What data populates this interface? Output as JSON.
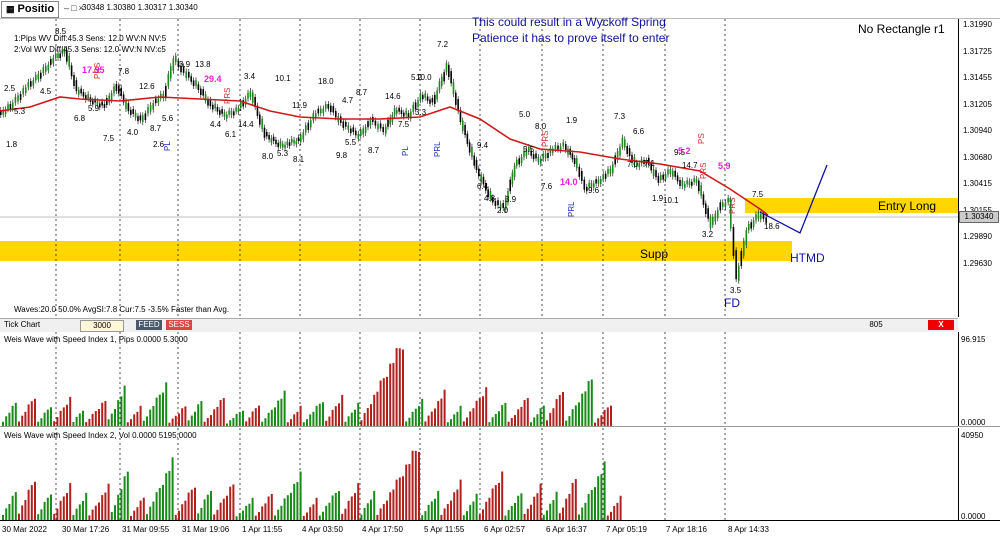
{
  "window": {
    "tab_title": "Positio",
    "tab_icon": "chart-icon",
    "quote_line": "30348 1.30380 1.30317 1.30340"
  },
  "main_chart": {
    "info_line_1": "1:Pips WV Diff:45.3 Sens: 12.0 WV:N NV:5",
    "info_line_2": "2:Vol WV Diff:45.3 Sens: 12.0 WV:N NV:c5",
    "waves_line": "Waves:20.0 50.0% AvgSI:7.8 Cur:7.5 -3.5% Faster than Avg.",
    "note_line_1": "This could result in a Wyckoff Spring",
    "note_line_2": "Patience it has to prove itself to enter",
    "no_rectangle": "No Rectangle r1",
    "entry_label": "Entry Long",
    "support_label": "Supp",
    "htmd_label": "HTMD",
    "fd_label": "FD",
    "fd_value": "3.5",
    "current_price": "1.30340",
    "price_axis": [
      "1.31990",
      "1.31725",
      "1.31455",
      "1.31205",
      "1.30940",
      "1.30680",
      "1.30415",
      "1.30155",
      "1.29890",
      "1.29630"
    ],
    "wave_labels": [
      {
        "t": "2.5",
        "c": "#000"
      },
      {
        "t": "5.3",
        "c": "#000"
      },
      {
        "t": "4.5",
        "c": "#000"
      },
      {
        "t": "8.5",
        "c": "#000"
      },
      {
        "t": "1.8",
        "c": "#000"
      },
      {
        "t": "6.8",
        "c": "#000"
      },
      {
        "t": "5.9",
        "c": "#000"
      },
      {
        "t": "7.8",
        "c": "#000"
      },
      {
        "t": "7.5",
        "c": "#000"
      },
      {
        "t": "4.0",
        "c": "#000"
      },
      {
        "t": "12.6",
        "c": "#000"
      },
      {
        "t": "8.7",
        "c": "#000"
      },
      {
        "t": "2.6",
        "c": "#000"
      },
      {
        "t": "5.6",
        "c": "#000"
      },
      {
        "t": "3.9",
        "c": "#000"
      },
      {
        "t": "13.8",
        "c": "#000"
      },
      {
        "t": "4.4",
        "c": "#000"
      },
      {
        "t": "6.1",
        "c": "#000"
      },
      {
        "t": "14.4",
        "c": "#000"
      },
      {
        "t": "3.4",
        "c": "#000"
      },
      {
        "t": "10.1",
        "c": "#000"
      },
      {
        "t": "8.0",
        "c": "#000"
      },
      {
        "t": "5.3",
        "c": "#000"
      },
      {
        "t": "11.9",
        "c": "#000"
      },
      {
        "t": "8.1",
        "c": "#000"
      },
      {
        "t": "18.0",
        "c": "#000"
      },
      {
        "t": "4.7",
        "c": "#000"
      },
      {
        "t": "9.8",
        "c": "#000"
      },
      {
        "t": "5.5",
        "c": "#000"
      },
      {
        "t": "8.7",
        "c": "#000"
      },
      {
        "t": "8.7",
        "c": "#000"
      },
      {
        "t": "14.6",
        "c": "#000"
      },
      {
        "t": "7.5",
        "c": "#000"
      },
      {
        "t": "5.2",
        "c": "#000"
      },
      {
        "t": "3.3",
        "c": "#000"
      },
      {
        "t": "10.0",
        "c": "#000"
      },
      {
        "t": "7.2",
        "c": "#000"
      },
      {
        "t": "9.4",
        "c": "#000"
      },
      {
        "t": "6.4",
        "c": "#000"
      },
      {
        "t": "4.8",
        "c": "#000"
      },
      {
        "t": "3.9",
        "c": "#000"
      },
      {
        "t": "2.0",
        "c": "#000"
      },
      {
        "t": "5.0",
        "c": "#000"
      },
      {
        "t": "8.0",
        "c": "#000"
      },
      {
        "t": "1.9",
        "c": "#000"
      },
      {
        "t": "5.5",
        "c": "#000"
      },
      {
        "t": "7.6",
        "c": "#000"
      },
      {
        "t": "9.6",
        "c": "#000"
      },
      {
        "t": "7.3",
        "c": "#000"
      },
      {
        "t": "6.6",
        "c": "#000"
      },
      {
        "t": "7.0",
        "c": "#000"
      },
      {
        "t": "7.1",
        "c": "#000"
      },
      {
        "t": "1.9",
        "c": "#000"
      },
      {
        "t": "10.1",
        "c": "#000"
      },
      {
        "t": "14.7",
        "c": "#000"
      },
      {
        "t": "9.5",
        "c": "#000"
      },
      {
        "t": "3.2",
        "c": "#000"
      },
      {
        "t": "7.5",
        "c": "#000"
      },
      {
        "t": "18.6",
        "c": "#000"
      },
      {
        "t": "17.95",
        "c": "#e020e0"
      },
      {
        "t": "29.4",
        "c": "#e020e0"
      },
      {
        "t": "14.0",
        "c": "#e020e0"
      },
      {
        "t": "5.2",
        "c": "#e020e0"
      },
      {
        "t": "5.9",
        "c": "#e020e0"
      }
    ],
    "tags": [
      {
        "t": "PRS",
        "c": "#d03030"
      },
      {
        "t": "PL",
        "c": "#2030c0"
      },
      {
        "t": "PRS",
        "c": "#d03030"
      },
      {
        "t": "PL",
        "c": "#2030c0"
      },
      {
        "t": "PRL",
        "c": "#2030c0"
      },
      {
        "t": "PRS",
        "c": "#d03030"
      },
      {
        "t": "PRL",
        "c": "#2030c0"
      },
      {
        "t": "PS",
        "c": "#d03030"
      },
      {
        "t": "PRS",
        "c": "#d03030"
      },
      {
        "t": "PRS",
        "c": "#d03030"
      }
    ]
  },
  "tick_bar": {
    "label": "Tick Chart",
    "ticks": "3000",
    "feed": "FEED",
    "sess": "SESS",
    "count": "805",
    "close": "X"
  },
  "indicator_1": {
    "title": "Weis Wave with Speed Index 1, Pips 0.0000 5.3000",
    "max_label": "96.915",
    "min_label": "0.0000"
  },
  "indicator_2": {
    "title": "Weis Wave with Speed Index 2, Vol  0.0000 5195.0000",
    "max_label": "40950",
    "min_label": "0.0000"
  },
  "x_axis": [
    "30 Mar 2022",
    "30 Mar 17:26",
    "31 Mar 09:55",
    "31 Mar 19:06",
    "1 Apr 11:55",
    "4 Apr 03:50",
    "4 Apr 17:50",
    "5 Apr 11:55",
    "6 Apr 02:57",
    "6 Apr 16:37",
    "7 Apr 05:19",
    "7 Apr 18:16",
    "8 Apr 14:33"
  ],
  "colors": {
    "ema": "#d01818",
    "up_bar": "#1a8a1a",
    "down_bar": "#b02020",
    "zone": "#ffd700",
    "annotation": "#1010a0"
  }
}
